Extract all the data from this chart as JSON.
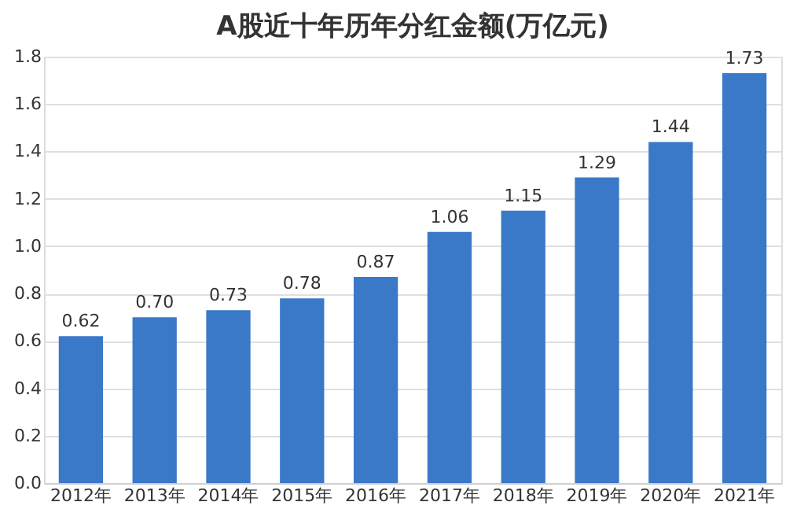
{
  "chart_data": {
    "type": "bar",
    "title": "A股近十年历年分红金额(万亿元)",
    "categories": [
      "2012年",
      "2013年",
      "2014年",
      "2015年",
      "2016年",
      "2017年",
      "2018年",
      "2019年",
      "2020年",
      "2021年"
    ],
    "values": [
      0.62,
      0.7,
      0.73,
      0.78,
      0.87,
      1.06,
      1.15,
      1.29,
      1.44,
      1.73
    ],
    "value_labels": [
      "0.62",
      "0.70",
      "0.73",
      "0.78",
      "0.87",
      "1.06",
      "1.15",
      "1.29",
      "1.44",
      "1.73"
    ],
    "color": "#3a78c8",
    "ylim": [
      0,
      1.8
    ],
    "yticks": [
      {
        "value": 0,
        "label": "0.0"
      },
      0.2,
      0.4,
      0.6,
      0.8,
      {
        "value": 1,
        "label": "1.0"
      },
      1.2,
      1.4,
      1.6,
      1.8
    ],
    "grid": "y"
  }
}
